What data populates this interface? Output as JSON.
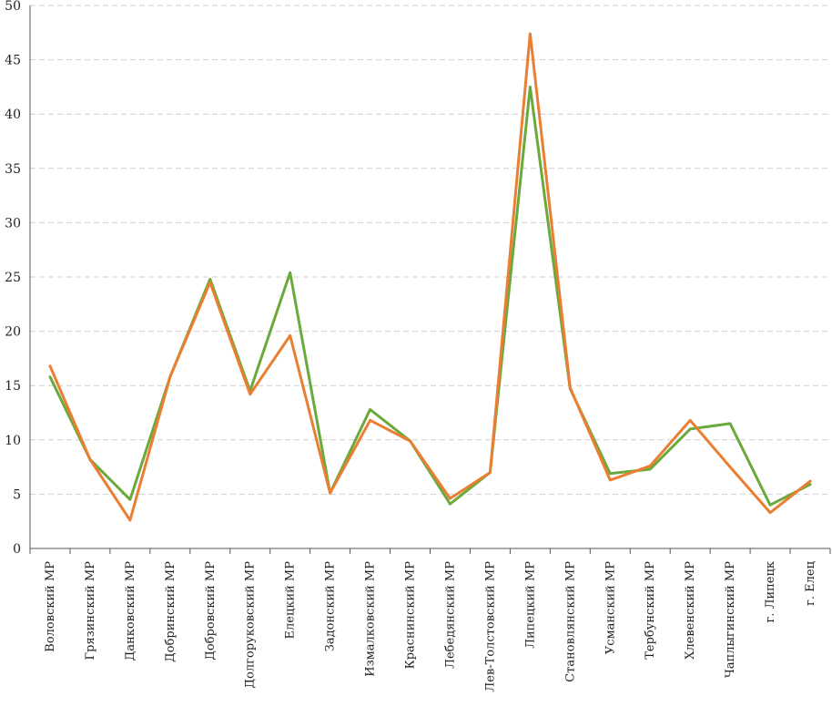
{
  "chart_data": {
    "type": "line",
    "categories": [
      "Воловский МР",
      "Грязинский МР",
      "Данковский МР",
      "Добринский МР",
      "Добровский МР",
      "Долгоруковский МР",
      "Елецкий МР",
      "Задонский МР",
      "Измалковский МР",
      "Краснинский МР",
      "Лебедянский МР",
      "Лев-Толстовский МР",
      "Липецкий МР",
      "Становлянский МР",
      "Усманский МР",
      "Тербунский МР",
      "Хлевенский МР",
      "Чаплыгинский МР",
      "г. Липецк",
      "г. Елец"
    ],
    "series": [
      {
        "values": [
          15.8,
          8.2,
          4.5,
          15.8,
          24.8,
          14.5,
          25.4,
          5.1,
          12.8,
          9.9,
          4.1,
          7.0,
          42.5,
          14.7,
          6.9,
          7.3,
          11.0,
          11.5,
          4.0,
          5.9
        ],
        "color": "#6aaa3c"
      },
      {
        "values": [
          16.8,
          8.2,
          2.6,
          15.8,
          24.5,
          14.2,
          19.6,
          5.1,
          11.8,
          9.9,
          4.6,
          7.0,
          47.4,
          14.8,
          6.3,
          7.6,
          11.8,
          7.5,
          3.3,
          6.2
        ],
        "color": "#ea7f33"
      }
    ],
    "yticks": [
      "0",
      "5",
      "10",
      "15",
      "20",
      "25",
      "30",
      "35",
      "40",
      "45",
      "50"
    ],
    "ylim": [
      0,
      50
    ],
    "grid": true,
    "legend": "none"
  }
}
